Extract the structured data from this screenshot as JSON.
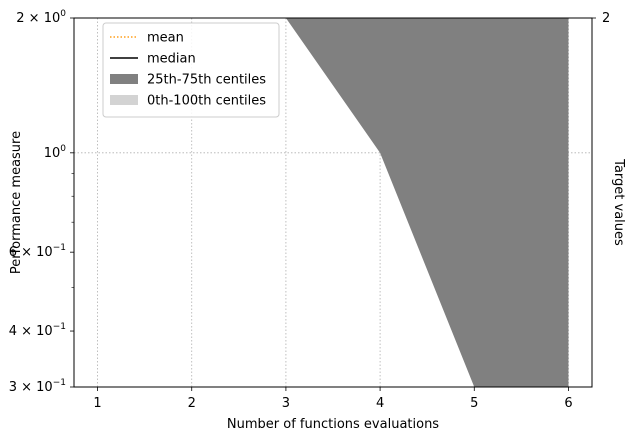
{
  "chart_data": {
    "type": "area",
    "xlabel": "Number of functions evaluations",
    "ylabel": "Performance measure",
    "ylabel_right": "Target values",
    "yscale": "log",
    "xlim": [
      0.75,
      6.25
    ],
    "ylim": [
      0.3,
      2.0
    ],
    "grid": true,
    "legend_position": "upper-left",
    "x_ticks": [
      1,
      2,
      3,
      4,
      5,
      6
    ],
    "x_tick_labels": [
      "1",
      "2",
      "3",
      "4",
      "5",
      "6"
    ],
    "y_major_ticks": [
      {
        "value": 2.0,
        "mantissa": "2",
        "exponent": "0"
      },
      {
        "value": 1.0,
        "mantissa": "",
        "exponent": "0"
      },
      {
        "value": 0.6,
        "mantissa": "6",
        "exponent": "−1"
      },
      {
        "value": 0.4,
        "mantissa": "4",
        "exponent": "−1"
      },
      {
        "value": 0.3,
        "mantissa": "3",
        "exponent": "−1"
      }
    ],
    "y_minor_ticks": [
      0.9,
      0.8,
      0.7,
      0.5
    ],
    "right_ticks": [
      {
        "value": 2.0,
        "label": "2"
      }
    ],
    "legend": [
      {
        "label": "mean",
        "style": "dotted-line",
        "color": "#ff9f1c"
      },
      {
        "label": "median",
        "style": "solid-line",
        "color": "#000000"
      },
      {
        "label": "25th-75th centiles",
        "style": "patch",
        "color": "#808080"
      },
      {
        "label": "0th-100th centiles",
        "style": "patch",
        "color": "#d3d3d3"
      }
    ],
    "series": [
      {
        "name": "25th-75th centiles",
        "style": "band",
        "color": "#808080",
        "upper": [
          {
            "x": 3,
            "y": 2.0
          },
          {
            "x": 6,
            "y": 2.0
          }
        ],
        "lower": [
          {
            "x": 3,
            "y": 2.0
          },
          {
            "x": 4,
            "y": 1.0
          },
          {
            "x": 5,
            "y": 0.3
          },
          {
            "x": 6,
            "y": 0.3
          }
        ]
      }
    ]
  }
}
